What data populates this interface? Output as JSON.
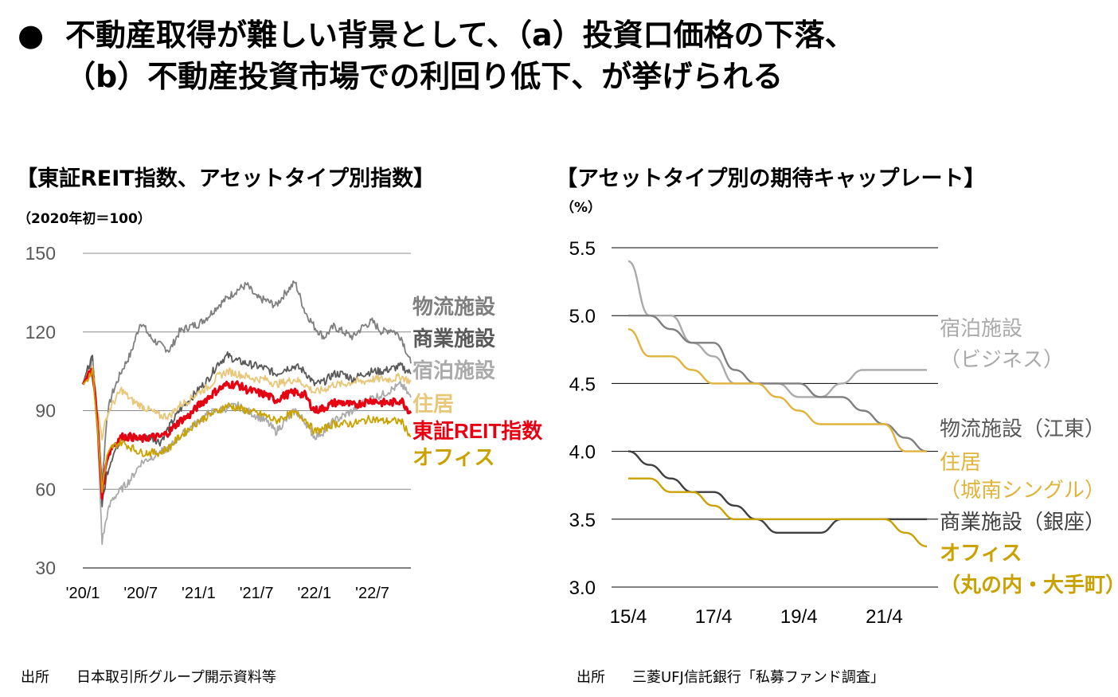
{
  "headline": {
    "bullet": "●",
    "line1": "不動産取得が難しい背景として、（a）投資口価格の下落、",
    "line2": "（b）不動産投資市場での利回り低下、が挙げられる"
  },
  "left_panel": {
    "title": "【東証REIT指数、アセットタイプ別指数】",
    "unit": "（2020年初＝100）",
    "source_label": "出所",
    "source_text": "日本取引所グループ開示資料等"
  },
  "right_panel": {
    "title": "【アセットタイプ別の期待キャップレート】",
    "unit": "（%）",
    "source_label": "出所",
    "source_text": "三菱UFJ信託銀行「私募ファンド調査」"
  },
  "chart_data": [
    {
      "type": "line",
      "title": "【東証REIT指数、アセットタイプ別指数】",
      "ylabel": "（2020年初＝100）",
      "ylim": [
        30,
        150
      ],
      "yticks": [
        "30",
        "60",
        "90",
        "120",
        "150"
      ],
      "xticks": [
        "'20/1",
        "'20/7",
        "'21/1",
        "'21/7",
        "'22/1",
        "'22/7"
      ],
      "grid": "horizontal",
      "x_months": [
        0,
        0.5,
        1,
        1.5,
        2,
        2.5,
        3,
        4,
        5,
        6,
        7,
        8,
        9,
        10,
        11,
        12,
        13,
        14,
        15,
        16,
        17,
        18,
        19,
        20,
        21,
        22,
        23,
        24,
        25,
        26,
        27,
        28,
        29,
        30,
        31,
        32,
        33,
        34
      ],
      "series": [
        {
          "name": "物流施設",
          "color": "#7f7f7f",
          "values": [
            100,
            106,
            110,
            88,
            62,
            88,
            96,
            105,
            112,
            124,
            118,
            115,
            113,
            120,
            122,
            123,
            126,
            130,
            133,
            136,
            138,
            133,
            132,
            130,
            135,
            139,
            128,
            122,
            118,
            122,
            120,
            118,
            122,
            124,
            120,
            121,
            118,
            108
          ]
        },
        {
          "name": "商業施設",
          "color": "#595959",
          "values": [
            100,
            106,
            110,
            86,
            54,
            66,
            72,
            80,
            80,
            79,
            80,
            78,
            84,
            90,
            94,
            98,
            102,
            108,
            111,
            109,
            108,
            107,
            106,
            104,
            106,
            107,
            105,
            100,
            101,
            104,
            104,
            102,
            104,
            105,
            105,
            106,
            107,
            104
          ]
        },
        {
          "name": "宿泊施設",
          "color": "#aaaaaa",
          "values": [
            100,
            103,
            108,
            84,
            40,
            50,
            56,
            60,
            64,
            70,
            72,
            74,
            76,
            80,
            83,
            86,
            89,
            90,
            91,
            92,
            90,
            88,
            86,
            82,
            86,
            90,
            86,
            80,
            82,
            86,
            88,
            90,
            93,
            95,
            96,
            98,
            100,
            95
          ]
        },
        {
          "name": "住居",
          "color": "#e8c77a",
          "values": [
            100,
            104,
            108,
            90,
            80,
            88,
            92,
            98,
            94,
            92,
            90,
            88,
            88,
            92,
            94,
            97,
            99,
            103,
            105,
            104,
            103,
            102,
            102,
            100,
            101,
            102,
            100,
            97,
            98,
            100,
            100,
            101,
            101,
            102,
            102,
            102,
            103,
            101
          ]
        },
        {
          "name": "東証REIT指数",
          "color": "#e60012",
          "values": [
            100,
            103,
            106,
            86,
            58,
            72,
            76,
            80,
            80,
            79,
            80,
            80,
            82,
            86,
            88,
            92,
            95,
            98,
            100,
            100,
            98,
            97,
            96,
            94,
            96,
            97,
            96,
            90,
            91,
            93,
            93,
            92,
            93,
            94,
            93,
            93,
            94,
            89
          ]
        },
        {
          "name": "オフィス",
          "color": "#c9a200",
          "values": [
            100,
            102,
            106,
            84,
            60,
            72,
            76,
            78,
            76,
            74,
            74,
            74,
            76,
            80,
            83,
            86,
            88,
            90,
            92,
            91,
            90,
            89,
            88,
            86,
            88,
            89,
            87,
            82,
            83,
            85,
            85,
            85,
            86,
            87,
            86,
            86,
            86,
            80
          ]
        }
      ]
    },
    {
      "type": "line",
      "title": "【アセットタイプ別の期待キャップレート】",
      "ylabel": "（%）",
      "ylim": [
        3.0,
        5.5
      ],
      "yticks": [
        "3.0",
        "3.5",
        "4.0",
        "4.5",
        "5.0",
        "5.5"
      ],
      "xticks": [
        "15/4",
        "17/4",
        "19/4",
        "21/4"
      ],
      "grid": "horizontal",
      "x": [
        "15/4",
        "15/10",
        "16/4",
        "16/10",
        "17/4",
        "17/10",
        "18/4",
        "18/10",
        "19/4",
        "19/10",
        "20/4",
        "20/10",
        "21/4",
        "21/10",
        "22/4"
      ],
      "series": [
        {
          "name": "宿泊施設（ビジネス）",
          "color": "#aaaaaa",
          "values": [
            5.4,
            5.0,
            5.0,
            4.8,
            4.7,
            4.5,
            4.5,
            4.5,
            4.4,
            4.4,
            4.5,
            4.6,
            4.6,
            4.6,
            4.6
          ]
        },
        {
          "name": "物流施設（江東）",
          "color": "#7f7f7f",
          "values": [
            5.0,
            5.0,
            4.9,
            4.8,
            4.8,
            4.6,
            4.5,
            4.5,
            4.5,
            4.4,
            4.4,
            4.3,
            4.2,
            4.1,
            4.0
          ]
        },
        {
          "name": "住居（城南シングル）",
          "color": "#e0b43c",
          "values": [
            4.9,
            4.7,
            4.7,
            4.6,
            4.5,
            4.5,
            4.5,
            4.4,
            4.3,
            4.2,
            4.2,
            4.2,
            4.2,
            4.0,
            4.0
          ]
        },
        {
          "name": "商業施設（銀座）",
          "color": "#3f3f3f",
          "values": [
            4.0,
            3.9,
            3.8,
            3.7,
            3.7,
            3.6,
            3.5,
            3.4,
            3.4,
            3.4,
            3.5,
            3.5,
            3.5,
            3.5,
            3.5
          ]
        },
        {
          "name": "オフィス（丸の内・大手町）",
          "color": "#c9a200",
          "values": [
            3.8,
            3.8,
            3.7,
            3.7,
            3.6,
            3.5,
            3.5,
            3.5,
            3.5,
            3.5,
            3.5,
            3.5,
            3.5,
            3.4,
            3.3
          ]
        }
      ],
      "series_label_lines": [
        [
          "宿泊施設",
          "（ビジネス）"
        ],
        [
          "物流施設（江東）"
        ],
        [
          "住居",
          "（城南シングル）"
        ],
        [
          "商業施設（銀座）"
        ],
        [
          "オフィス",
          "（丸の内・大手町）"
        ]
      ]
    }
  ]
}
